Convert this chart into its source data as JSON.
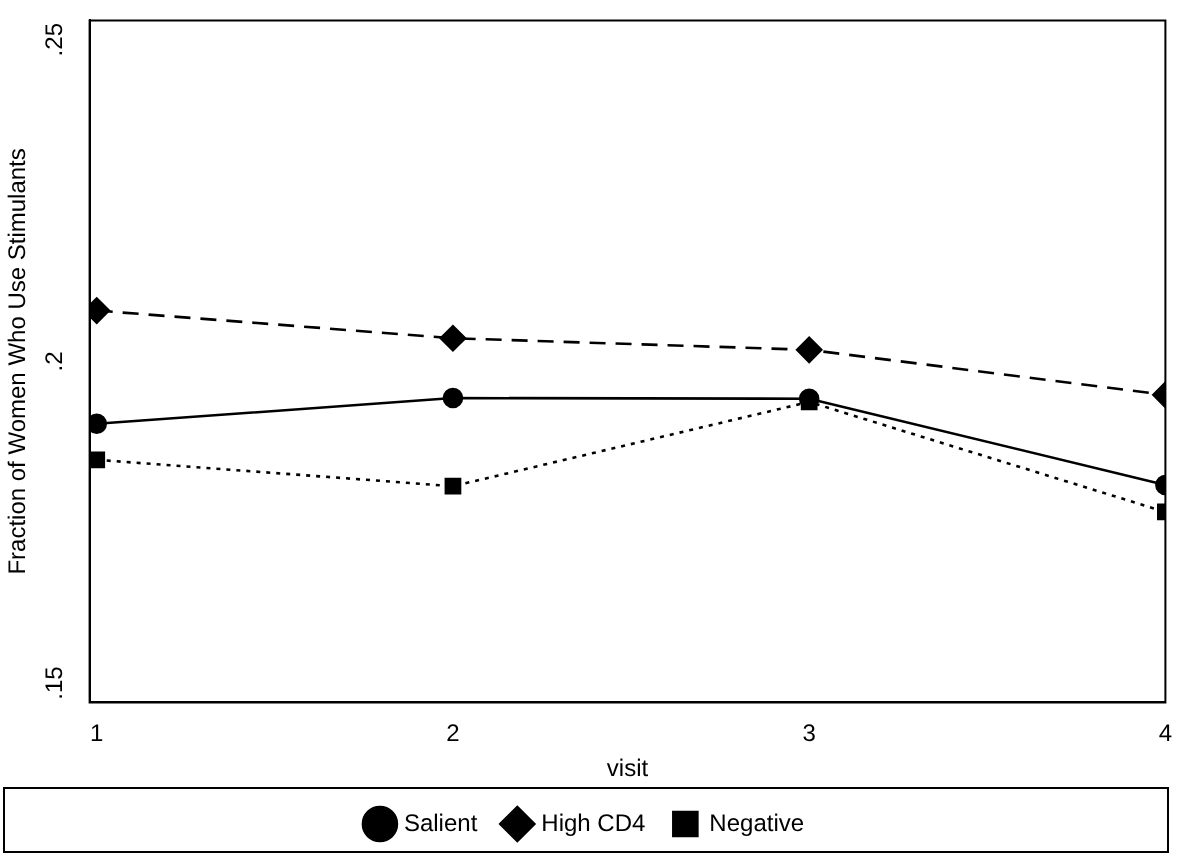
{
  "chart_data": {
    "type": "line",
    "xlabel": "visit",
    "ylabel": "Fraction of Women Who Use Stimulants",
    "x": [
      1,
      2,
      3,
      4
    ],
    "xlim": [
      0.98,
      4
    ],
    "xticks": [
      1,
      2,
      3,
      4
    ],
    "ylim": [
      0.147,
      0.253
    ],
    "yticks": [
      {
        "value": 0.15,
        "label": ".15"
      },
      {
        "value": 0.2,
        "label": ".2"
      },
      {
        "value": 0.25,
        "label": ".25"
      }
    ],
    "grid": false,
    "legend": "bottom",
    "series": [
      {
        "name": "Salient",
        "color": "#000000",
        "marker": "circle",
        "line_style": "solid",
        "values": [
          0.1903,
          0.1943,
          0.1942,
          0.1808
        ]
      },
      {
        "name": "High CD4",
        "color": "#000000",
        "marker": "diamond",
        "line_style": "dashed",
        "values": [
          0.2079,
          0.2036,
          0.2018,
          0.1948
        ]
      },
      {
        "name": "Negative",
        "color": "#000000",
        "marker": "square",
        "line_style": "dotted",
        "values": [
          0.1847,
          0.1806,
          0.1937,
          0.1766
        ]
      }
    ]
  }
}
